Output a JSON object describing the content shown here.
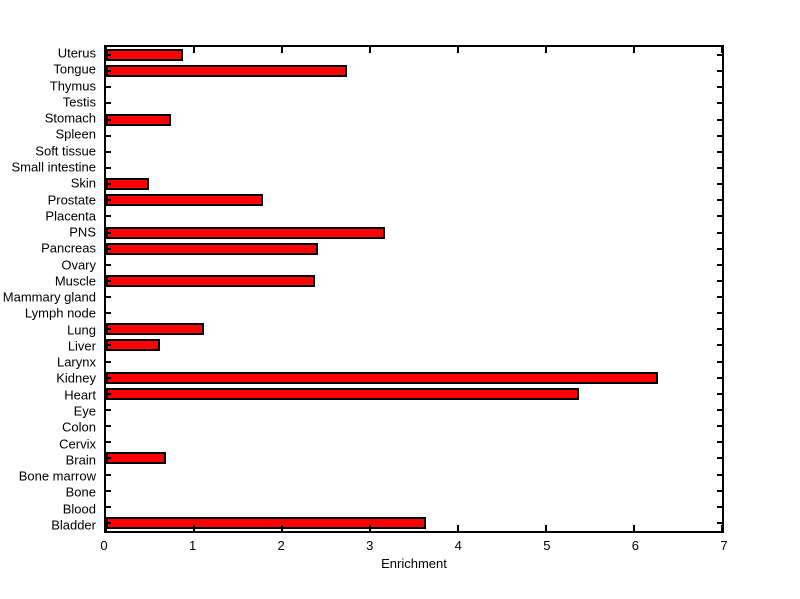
{
  "chart_data": {
    "type": "bar",
    "orientation": "horizontal",
    "title": "",
    "xlabel": "Enrichment",
    "ylabel": "",
    "xlim": [
      0,
      7
    ],
    "xticks": [
      0,
      1,
      2,
      3,
      4,
      5,
      6,
      7
    ],
    "grid": false,
    "legend": false,
    "bar_color": "#FF0000",
    "bar_edge_color": "#000000",
    "axis_color": "#000000",
    "background": "#FFFFFF",
    "categories": [
      "Uterus",
      "Tongue",
      "Thymus",
      "Testis",
      "Stomach",
      "Spleen",
      "Soft tissue",
      "Small intestine",
      "Skin",
      "Prostate",
      "Placenta",
      "PNS",
      "Pancreas",
      "Ovary",
      "Muscle",
      "Mammary gland",
      "Lymph node",
      "Lung",
      "Liver",
      "Larynx",
      "Kidney",
      "Heart",
      "Eye",
      "Colon",
      "Cervix",
      "Brain",
      "Bone marrow",
      "Bone",
      "Blood",
      "Bladder"
    ],
    "values": [
      0.88,
      2.74,
      0,
      0,
      0.74,
      0,
      0,
      0,
      0.49,
      1.78,
      0,
      3.17,
      2.41,
      0,
      2.38,
      0,
      0,
      1.11,
      0.61,
      0,
      6.27,
      5.37,
      0,
      0,
      0,
      0.68,
      0,
      0,
      0,
      3.64
    ]
  }
}
